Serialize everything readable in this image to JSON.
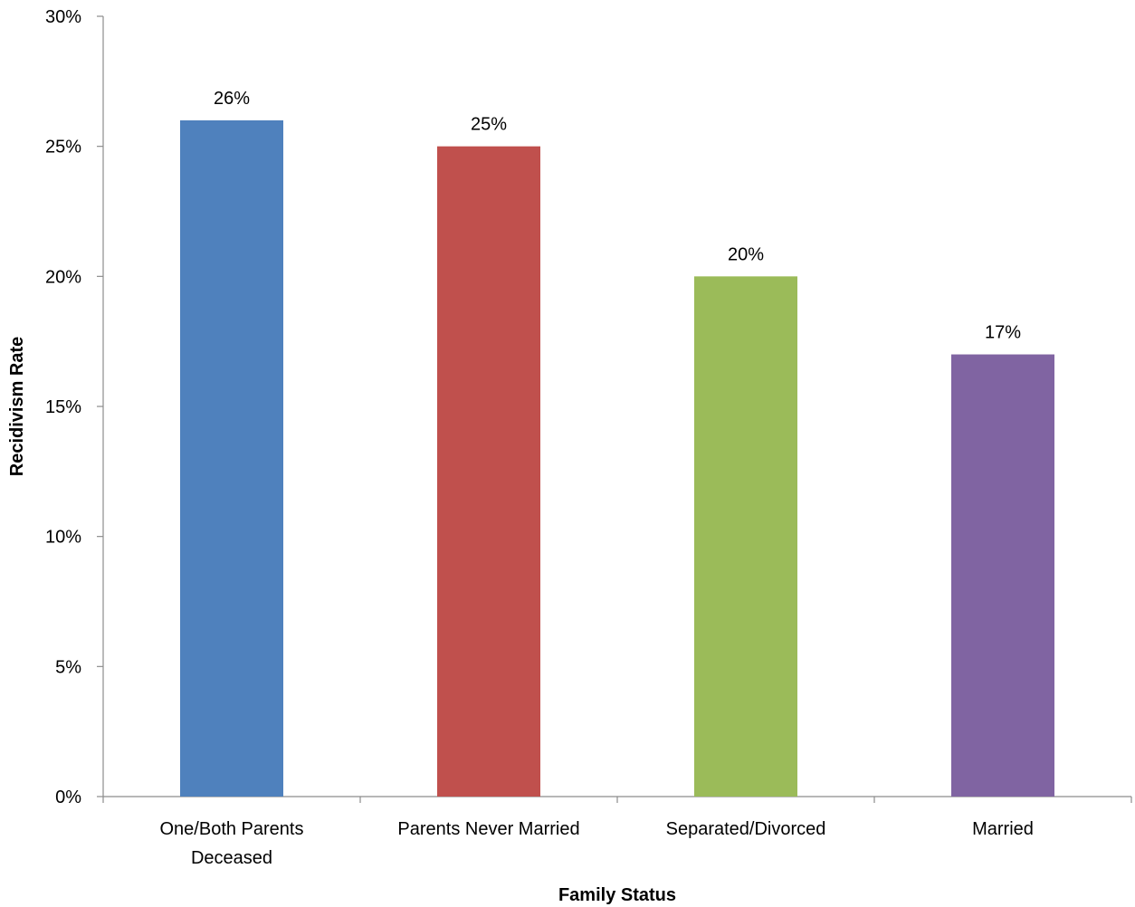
{
  "chart_data": {
    "type": "bar",
    "categories": [
      [
        "One/Both Parents",
        "Deceased"
      ],
      [
        "Parents Never Married"
      ],
      [
        "Separated/Divorced"
      ],
      [
        "Married"
      ]
    ],
    "values": [
      26,
      25,
      20,
      17
    ],
    "data_labels": [
      "26%",
      "25%",
      "20%",
      "17%"
    ],
    "colors": [
      "#4f81bd",
      "#c0504d",
      "#9bbb59",
      "#8064a2"
    ],
    "ylim": [
      0,
      30
    ],
    "y_ticks": [
      0,
      5,
      10,
      15,
      20,
      25,
      30
    ],
    "y_tick_labels": [
      "0%",
      "5%",
      "10%",
      "15%",
      "20%",
      "25%",
      "30%"
    ],
    "xlabel": "Family Status",
    "ylabel": "Recidivism Rate",
    "grid": false,
    "legend": "none"
  }
}
